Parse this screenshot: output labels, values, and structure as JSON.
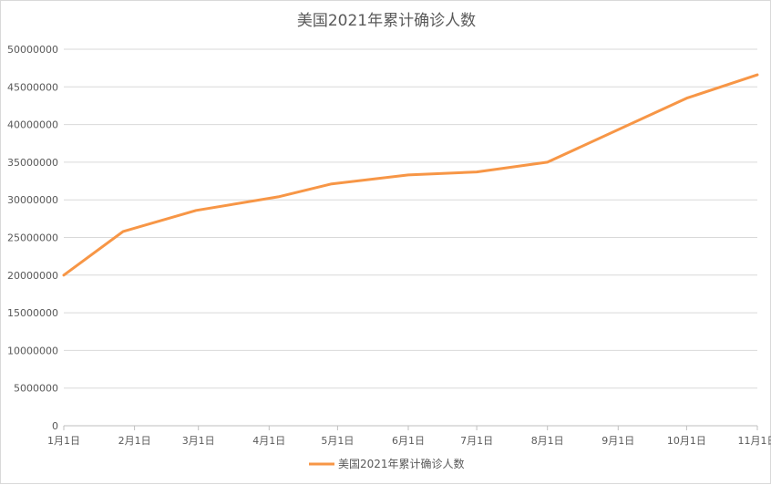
{
  "chart_data": {
    "type": "line",
    "title": "美国2021年累计确诊人数",
    "xlabel": "",
    "ylabel": "",
    "ylim": [
      0,
      50000000
    ],
    "y_ticks": [
      "0",
      "5000000",
      "10000000",
      "15000000",
      "20000000",
      "25000000",
      "30000000",
      "35000000",
      "40000000",
      "45000000",
      "50000000"
    ],
    "categories": [
      "1月1日",
      "2月1日",
      "3月1日",
      "4月1日",
      "5月1日",
      "6月1日",
      "7月1日",
      "8月1日",
      "9月1日",
      "10月1日",
      "11月1日"
    ],
    "series": [
      {
        "name": "美国2021年累计确诊人数",
        "color": "#f79646",
        "points": [
          {
            "date": "1月1日",
            "value": 20000000
          },
          {
            "date": "1月27日",
            "value": 25800000
          },
          {
            "date": "2月28日",
            "value": 28600000
          },
          {
            "date": "4月5日",
            "value": 30400000
          },
          {
            "date": "4月28日",
            "value": 32100000
          },
          {
            "date": "6月1日",
            "value": 33300000
          },
          {
            "date": "7月1日",
            "value": 33700000
          },
          {
            "date": "8月1日",
            "value": 35000000
          },
          {
            "date": "10月1日",
            "value": 43500000
          },
          {
            "date": "11月1日",
            "value": 46600000
          }
        ]
      }
    ],
    "grid": true,
    "legend": "bottom"
  }
}
